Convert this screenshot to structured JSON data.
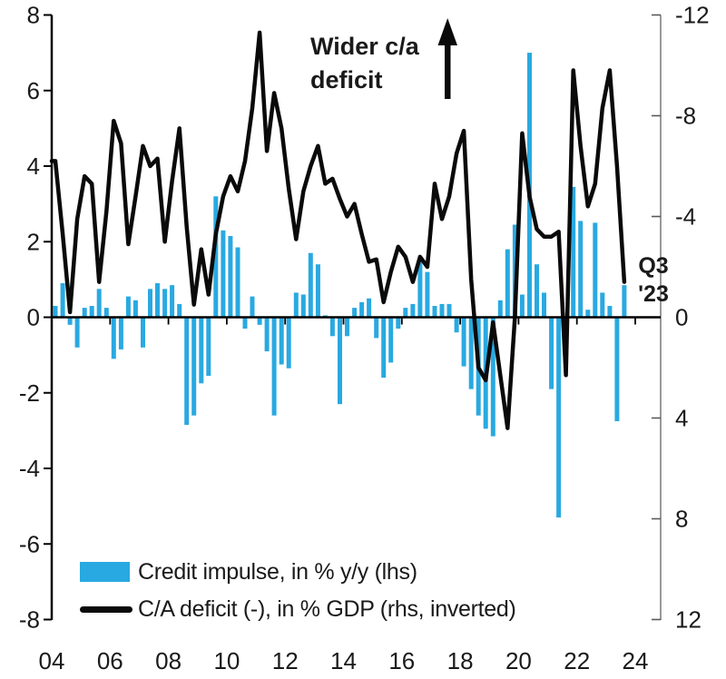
{
  "chart": {
    "annotation": {
      "line1": "Wider c/a",
      "line2": "deficit"
    },
    "end_label": {
      "line1": "Q3",
      "line2": "'23"
    },
    "legend": [
      {
        "label": "Credit impulse, in % y/y (lhs)",
        "swatch": "bar",
        "color": "#29a9e1"
      },
      {
        "label": "C/A deficit (-), in % GDP (rhs, inverted)",
        "swatch": "line",
        "color": "#0a0a0a"
      }
    ]
  },
  "chart_data": {
    "type": "combo",
    "frequency": "quarterly",
    "x_start": "2004Q1",
    "x_end": "2023Q3",
    "grid": false,
    "x_axis": {
      "tick_labels": [
        "04",
        "06",
        "08",
        "10",
        "12",
        "14",
        "16",
        "18",
        "20",
        "22",
        "24"
      ]
    },
    "left_axis": {
      "tick_labels": [
        "8",
        "6",
        "4",
        "2",
        "0",
        "-2",
        "-4",
        "-6",
        "-8"
      ],
      "tick_values": [
        8,
        6,
        4,
        2,
        0,
        -2,
        -4,
        -6,
        -8
      ],
      "range": [
        -8,
        8
      ]
    },
    "right_axis": {
      "tick_labels": [
        "-12",
        "-8",
        "-4",
        "0",
        "4",
        "8",
        "12"
      ],
      "tick_values": [
        -12,
        -8,
        -4,
        0,
        4,
        8,
        12
      ],
      "range": [
        -12,
        12
      ],
      "inverted": true
    },
    "series": [
      {
        "name": "Credit impulse, in % y/y (lhs)",
        "type": "bar",
        "axis": "left",
        "color": "#29a9e1",
        "values": [
          0.3,
          0.9,
          -0.2,
          -0.8,
          0.25,
          0.3,
          0.75,
          0.25,
          -1.1,
          -0.85,
          0.55,
          0.45,
          -0.8,
          0.75,
          0.9,
          0.75,
          0.85,
          0.35,
          -2.85,
          -2.6,
          -1.75,
          -1.55,
          3.2,
          2.3,
          2.15,
          1.85,
          -0.3,
          0.55,
          -0.2,
          -0.9,
          -2.6,
          -1.25,
          -1.35,
          0.65,
          0.6,
          1.7,
          1.4,
          0.05,
          -0.5,
          -2.3,
          -0.5,
          0.25,
          0.4,
          0.5,
          -0.55,
          -1.6,
          -1.2,
          -0.3,
          0.25,
          0.35,
          1.5,
          1.2,
          0.3,
          0.35,
          0.35,
          -0.4,
          -1.3,
          -1.9,
          -2.6,
          -2.95,
          -3.15,
          0.45,
          1.8,
          2.45,
          0.6,
          7.0,
          1.4,
          0.65,
          -1.9,
          -5.3,
          -0.95,
          3.45,
          2.55,
          0.2,
          2.5,
          0.65,
          0.3,
          -2.75,
          0.85
        ]
      },
      {
        "name": "C/A deficit (-), in % GDP (rhs, inverted)",
        "type": "line",
        "axis": "right",
        "color": "#0a0a0a",
        "values": [
          -6.2,
          -3.3,
          -0.2,
          -3.9,
          -5.6,
          -5.3,
          -1.4,
          -4.2,
          -7.8,
          -6.9,
          -2.9,
          -4.8,
          -6.8,
          -6.0,
          -6.3,
          -3.0,
          -5.4,
          -7.5,
          -3.6,
          -0.5,
          -2.7,
          -0.9,
          -3.3,
          -4.8,
          -5.6,
          -5.0,
          -6.2,
          -8.3,
          -11.3,
          -6.6,
          -8.9,
          -7.5,
          -5.1,
          -3.1,
          -5.0,
          -6.0,
          -6.8,
          -5.3,
          -5.5,
          -4.7,
          -4.0,
          -4.5,
          -3.3,
          -2.2,
          -2.3,
          -0.6,
          -1.8,
          -2.8,
          -2.4,
          -1.4,
          -2.4,
          -2.0,
          -5.3,
          -3.9,
          -4.8,
          -6.5,
          -7.4,
          -1.5,
          2.0,
          2.5,
          0.2,
          2.3,
          4.4,
          0.0,
          -7.3,
          -4.8,
          -3.5,
          -3.2,
          -3.2,
          -3.4,
          2.3,
          -9.8,
          -6.8,
          -4.4,
          -5.3,
          -8.3,
          -9.8,
          -6.0,
          -1.4
        ]
      }
    ]
  }
}
